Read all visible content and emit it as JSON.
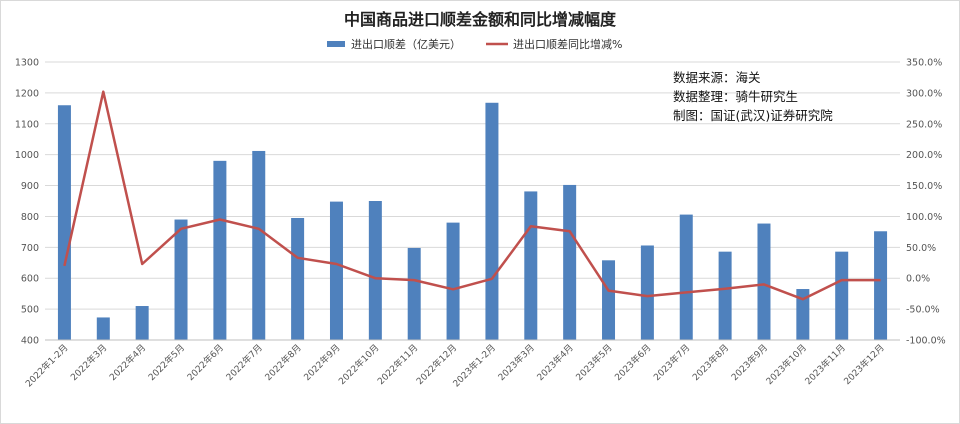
{
  "chart_data": {
    "type": "bar",
    "title": "中国商品进口顺差金额和同比增减幅度",
    "categories": [
      "2022年1-2月",
      "2022年3月",
      "2022年4月",
      "2022年5月",
      "2022年6月",
      "2022年7月",
      "2022年8月",
      "2022年9月",
      "2022年10月",
      "2022年11月",
      "2022年12月",
      "2023年1-2月",
      "2023年3月",
      "2023年4月",
      "2023年5月",
      "2023年6月",
      "2023年7月",
      "2023年8月",
      "2023年9月",
      "2023年10月",
      "2023年11月",
      "2023年12月"
    ],
    "series": [
      {
        "name": "进出口顺差（亿美元）",
        "type": "bar",
        "axis": "left",
        "color": "#4f81bd",
        "values": [
          1160,
          473,
          510,
          790,
          980,
          1012,
          795,
          848,
          850,
          698,
          780,
          1168,
          881,
          902,
          658,
          706,
          806,
          686,
          777,
          565,
          686,
          752
        ]
      },
      {
        "name": "进出口顺差同比增减%",
        "type": "line",
        "axis": "right",
        "color": "#c0504d",
        "values": [
          20,
          302,
          23,
          80,
          95,
          80,
          33,
          23,
          0,
          -3,
          -18,
          -1,
          84,
          76,
          -20,
          -29,
          -23,
          -17,
          -10,
          -34,
          -3,
          -3
        ]
      }
    ],
    "ylim": [
      400,
      1300
    ],
    "yticks": [
      "400",
      "500",
      "600",
      "700",
      "800",
      "900",
      "1000",
      "1100",
      "1200",
      "1300"
    ],
    "y2lim": [
      -100,
      350
    ],
    "y2ticks": [
      "-100.0%",
      "-50.0%",
      "0.0%",
      "50.0%",
      "100.0%",
      "150.0%",
      "200.0%",
      "250.0%",
      "300.0%",
      "350.0%"
    ],
    "grid": true,
    "legend_position": "top-center"
  },
  "annotations": [
    "数据来源：海关",
    "数据整理：骑牛研究生",
    "制图：国证(武汉)证券研究院"
  ]
}
